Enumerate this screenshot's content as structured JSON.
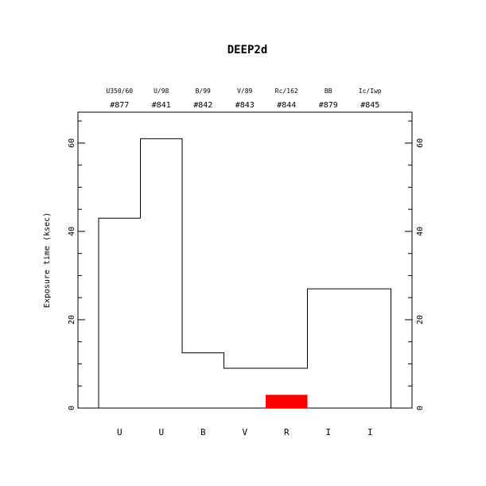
{
  "chart_data": {
    "type": "bar",
    "title": "DEEP2d",
    "ylabel": "Exposure time (ksec)",
    "xlabel": "",
    "ylim": [
      0,
      67
    ],
    "yticks": [
      0,
      20,
      40,
      60
    ],
    "grid": false,
    "filters": [
      {
        "name": "U350/60",
        "number": "#877",
        "band": "U",
        "value": 43
      },
      {
        "name": "U/98",
        "number": "#841",
        "band": "U",
        "value": 61
      },
      {
        "name": "B/99",
        "number": "#842",
        "band": "B",
        "value": 12.5
      },
      {
        "name": "V/89",
        "number": "#843",
        "band": "V",
        "value": 9
      },
      {
        "name": "Rc/162",
        "number": "#844",
        "band": "R",
        "value": 9
      },
      {
        "name": "BB",
        "number": "#879",
        "band": "I",
        "value": 27
      },
      {
        "name": "Ic/Iwp",
        "number": "#845",
        "band": "I",
        "value": 27
      }
    ],
    "highlight": {
      "category_index": 4,
      "value": 3,
      "color": "#ff0000"
    }
  }
}
